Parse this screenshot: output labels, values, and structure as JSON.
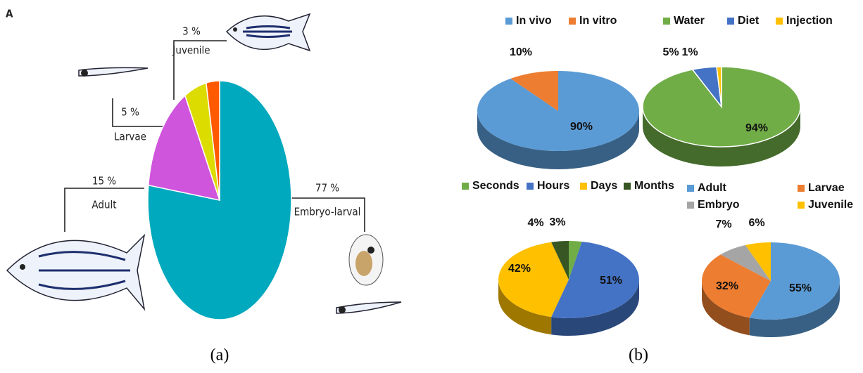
{
  "panel_a": {
    "letter": "A",
    "caption": "(a)"
  },
  "panel_b": {
    "caption": "(b)"
  },
  "chart_data": [
    {
      "type": "pie",
      "categories": [
        "Embryo-larval",
        "Adult",
        "Larvae",
        "Juvenile"
      ],
      "values": [
        77,
        15,
        5,
        3
      ],
      "value_labels": [
        "77 %",
        "15 %",
        "5 %",
        "3 %"
      ],
      "colors": [
        "#00a9bd",
        "#cf55dc",
        "#dcdc00",
        "#ff5a00"
      ],
      "legend": false
    },
    {
      "type": "pie",
      "categories": [
        "In vivo",
        "In vitro"
      ],
      "values": [
        90,
        10
      ],
      "value_labels": [
        "90%",
        "10%"
      ],
      "colors": [
        "#5b9bd5",
        "#ed7d31"
      ],
      "legend": true
    },
    {
      "type": "pie",
      "categories": [
        "Water",
        "Diet",
        "Injection"
      ],
      "values": [
        94,
        5,
        1
      ],
      "value_labels": [
        "94%",
        "5%",
        "1%"
      ],
      "colors": [
        "#70ad47",
        "#4472c4",
        "#ffc000"
      ],
      "legend": true
    },
    {
      "type": "pie",
      "categories": [
        "Seconds",
        "Hours",
        "Days",
        "Months"
      ],
      "values": [
        3,
        51,
        42,
        4
      ],
      "value_labels": [
        "3%",
        "51%",
        "42%",
        "4%"
      ],
      "colors": [
        "#70ad47",
        "#4472c4",
        "#ffc000",
        "#375623"
      ],
      "legend": true
    },
    {
      "type": "pie",
      "categories": [
        "Adult",
        "Larvae",
        "Embryo",
        "Juvenile"
      ],
      "values": [
        55,
        32,
        7,
        6
      ],
      "value_labels": [
        "55%",
        "32%",
        "7%",
        "6%"
      ],
      "colors": [
        "#5b9bd5",
        "#ed7d31",
        "#a5a5a5",
        "#ffc000"
      ],
      "legend": true
    }
  ]
}
